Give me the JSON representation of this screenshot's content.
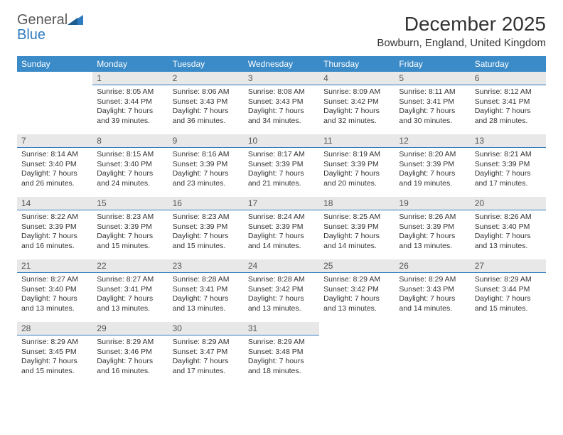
{
  "logo": {
    "line1": "General",
    "line2": "Blue"
  },
  "title": "December 2025",
  "location": "Bowburn, England, United Kingdom",
  "colors": {
    "header_bg": "#3b8bc8",
    "header_text": "#ffffff",
    "daynum_bg": "#e8e8e8",
    "daynum_border": "#2f7bbf",
    "text": "#333333",
    "logo_gray": "#5a5a5a",
    "logo_blue": "#2f7bbf"
  },
  "day_headers": [
    "Sunday",
    "Monday",
    "Tuesday",
    "Wednesday",
    "Thursday",
    "Friday",
    "Saturday"
  ],
  "start_offset": 1,
  "days": [
    {
      "n": "1",
      "sunrise": "Sunrise: 8:05 AM",
      "sunset": "Sunset: 3:44 PM",
      "day1": "Daylight: 7 hours",
      "day2": "and 39 minutes."
    },
    {
      "n": "2",
      "sunrise": "Sunrise: 8:06 AM",
      "sunset": "Sunset: 3:43 PM",
      "day1": "Daylight: 7 hours",
      "day2": "and 36 minutes."
    },
    {
      "n": "3",
      "sunrise": "Sunrise: 8:08 AM",
      "sunset": "Sunset: 3:43 PM",
      "day1": "Daylight: 7 hours",
      "day2": "and 34 minutes."
    },
    {
      "n": "4",
      "sunrise": "Sunrise: 8:09 AM",
      "sunset": "Sunset: 3:42 PM",
      "day1": "Daylight: 7 hours",
      "day2": "and 32 minutes."
    },
    {
      "n": "5",
      "sunrise": "Sunrise: 8:11 AM",
      "sunset": "Sunset: 3:41 PM",
      "day1": "Daylight: 7 hours",
      "day2": "and 30 minutes."
    },
    {
      "n": "6",
      "sunrise": "Sunrise: 8:12 AM",
      "sunset": "Sunset: 3:41 PM",
      "day1": "Daylight: 7 hours",
      "day2": "and 28 minutes."
    },
    {
      "n": "7",
      "sunrise": "Sunrise: 8:14 AM",
      "sunset": "Sunset: 3:40 PM",
      "day1": "Daylight: 7 hours",
      "day2": "and 26 minutes."
    },
    {
      "n": "8",
      "sunrise": "Sunrise: 8:15 AM",
      "sunset": "Sunset: 3:40 PM",
      "day1": "Daylight: 7 hours",
      "day2": "and 24 minutes."
    },
    {
      "n": "9",
      "sunrise": "Sunrise: 8:16 AM",
      "sunset": "Sunset: 3:39 PM",
      "day1": "Daylight: 7 hours",
      "day2": "and 23 minutes."
    },
    {
      "n": "10",
      "sunrise": "Sunrise: 8:17 AM",
      "sunset": "Sunset: 3:39 PM",
      "day1": "Daylight: 7 hours",
      "day2": "and 21 minutes."
    },
    {
      "n": "11",
      "sunrise": "Sunrise: 8:19 AM",
      "sunset": "Sunset: 3:39 PM",
      "day1": "Daylight: 7 hours",
      "day2": "and 20 minutes."
    },
    {
      "n": "12",
      "sunrise": "Sunrise: 8:20 AM",
      "sunset": "Sunset: 3:39 PM",
      "day1": "Daylight: 7 hours",
      "day2": "and 19 minutes."
    },
    {
      "n": "13",
      "sunrise": "Sunrise: 8:21 AM",
      "sunset": "Sunset: 3:39 PM",
      "day1": "Daylight: 7 hours",
      "day2": "and 17 minutes."
    },
    {
      "n": "14",
      "sunrise": "Sunrise: 8:22 AM",
      "sunset": "Sunset: 3:39 PM",
      "day1": "Daylight: 7 hours",
      "day2": "and 16 minutes."
    },
    {
      "n": "15",
      "sunrise": "Sunrise: 8:23 AM",
      "sunset": "Sunset: 3:39 PM",
      "day1": "Daylight: 7 hours",
      "day2": "and 15 minutes."
    },
    {
      "n": "16",
      "sunrise": "Sunrise: 8:23 AM",
      "sunset": "Sunset: 3:39 PM",
      "day1": "Daylight: 7 hours",
      "day2": "and 15 minutes."
    },
    {
      "n": "17",
      "sunrise": "Sunrise: 8:24 AM",
      "sunset": "Sunset: 3:39 PM",
      "day1": "Daylight: 7 hours",
      "day2": "and 14 minutes."
    },
    {
      "n": "18",
      "sunrise": "Sunrise: 8:25 AM",
      "sunset": "Sunset: 3:39 PM",
      "day1": "Daylight: 7 hours",
      "day2": "and 14 minutes."
    },
    {
      "n": "19",
      "sunrise": "Sunrise: 8:26 AM",
      "sunset": "Sunset: 3:39 PM",
      "day1": "Daylight: 7 hours",
      "day2": "and 13 minutes."
    },
    {
      "n": "20",
      "sunrise": "Sunrise: 8:26 AM",
      "sunset": "Sunset: 3:40 PM",
      "day1": "Daylight: 7 hours",
      "day2": "and 13 minutes."
    },
    {
      "n": "21",
      "sunrise": "Sunrise: 8:27 AM",
      "sunset": "Sunset: 3:40 PM",
      "day1": "Daylight: 7 hours",
      "day2": "and 13 minutes."
    },
    {
      "n": "22",
      "sunrise": "Sunrise: 8:27 AM",
      "sunset": "Sunset: 3:41 PM",
      "day1": "Daylight: 7 hours",
      "day2": "and 13 minutes."
    },
    {
      "n": "23",
      "sunrise": "Sunrise: 8:28 AM",
      "sunset": "Sunset: 3:41 PM",
      "day1": "Daylight: 7 hours",
      "day2": "and 13 minutes."
    },
    {
      "n": "24",
      "sunrise": "Sunrise: 8:28 AM",
      "sunset": "Sunset: 3:42 PM",
      "day1": "Daylight: 7 hours",
      "day2": "and 13 minutes."
    },
    {
      "n": "25",
      "sunrise": "Sunrise: 8:29 AM",
      "sunset": "Sunset: 3:42 PM",
      "day1": "Daylight: 7 hours",
      "day2": "and 13 minutes."
    },
    {
      "n": "26",
      "sunrise": "Sunrise: 8:29 AM",
      "sunset": "Sunset: 3:43 PM",
      "day1": "Daylight: 7 hours",
      "day2": "and 14 minutes."
    },
    {
      "n": "27",
      "sunrise": "Sunrise: 8:29 AM",
      "sunset": "Sunset: 3:44 PM",
      "day1": "Daylight: 7 hours",
      "day2": "and 15 minutes."
    },
    {
      "n": "28",
      "sunrise": "Sunrise: 8:29 AM",
      "sunset": "Sunset: 3:45 PM",
      "day1": "Daylight: 7 hours",
      "day2": "and 15 minutes."
    },
    {
      "n": "29",
      "sunrise": "Sunrise: 8:29 AM",
      "sunset": "Sunset: 3:46 PM",
      "day1": "Daylight: 7 hours",
      "day2": "and 16 minutes."
    },
    {
      "n": "30",
      "sunrise": "Sunrise: 8:29 AM",
      "sunset": "Sunset: 3:47 PM",
      "day1": "Daylight: 7 hours",
      "day2": "and 17 minutes."
    },
    {
      "n": "31",
      "sunrise": "Sunrise: 8:29 AM",
      "sunset": "Sunset: 3:48 PM",
      "day1": "Daylight: 7 hours",
      "day2": "and 18 minutes."
    }
  ]
}
